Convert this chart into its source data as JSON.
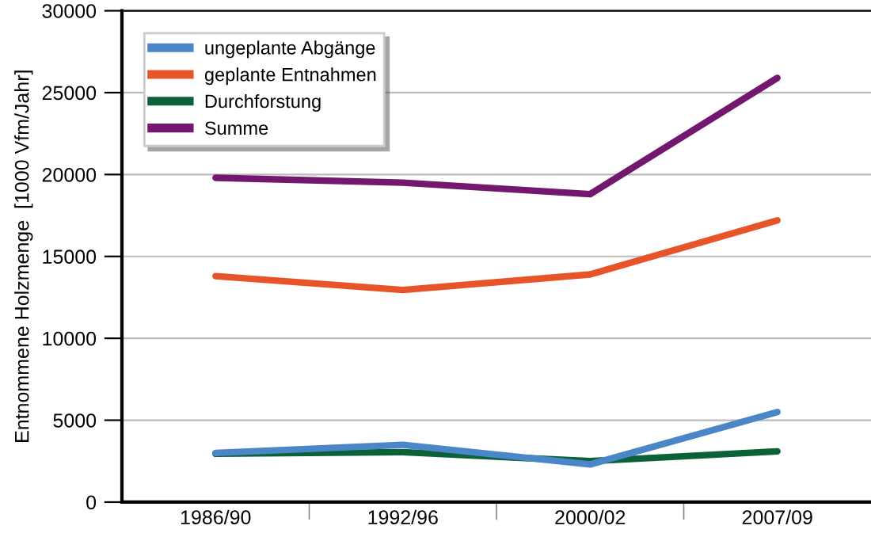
{
  "chart_data": {
    "type": "line",
    "ylabel": "Entnommene Holzmenge  [1000 Vfm/Jahr]",
    "categories": [
      "1986/90",
      "1992/96",
      "2000/02",
      "2007/09"
    ],
    "series": [
      {
        "name": "ungeplante Abgänge",
        "color": "#4a86c8",
        "values": [
          3000,
          3500,
          2300,
          5500
        ]
      },
      {
        "name": "geplante Entnahmen",
        "color": "#e8542a",
        "values": [
          13800,
          12950,
          13900,
          17200
        ]
      },
      {
        "name": "Durchforstung",
        "color": "#0a6236",
        "values": [
          2950,
          3050,
          2500,
          3100
        ]
      },
      {
        "name": "Summe",
        "color": "#74176f",
        "values": [
          19800,
          19500,
          18800,
          25900
        ]
      }
    ],
    "ylim": [
      0,
      30000
    ],
    "yticks": [
      0,
      5000,
      10000,
      15000,
      20000,
      25000,
      30000
    ],
    "grid": "y",
    "legend": "top left",
    "marker": "none",
    "line_style": "solid"
  }
}
